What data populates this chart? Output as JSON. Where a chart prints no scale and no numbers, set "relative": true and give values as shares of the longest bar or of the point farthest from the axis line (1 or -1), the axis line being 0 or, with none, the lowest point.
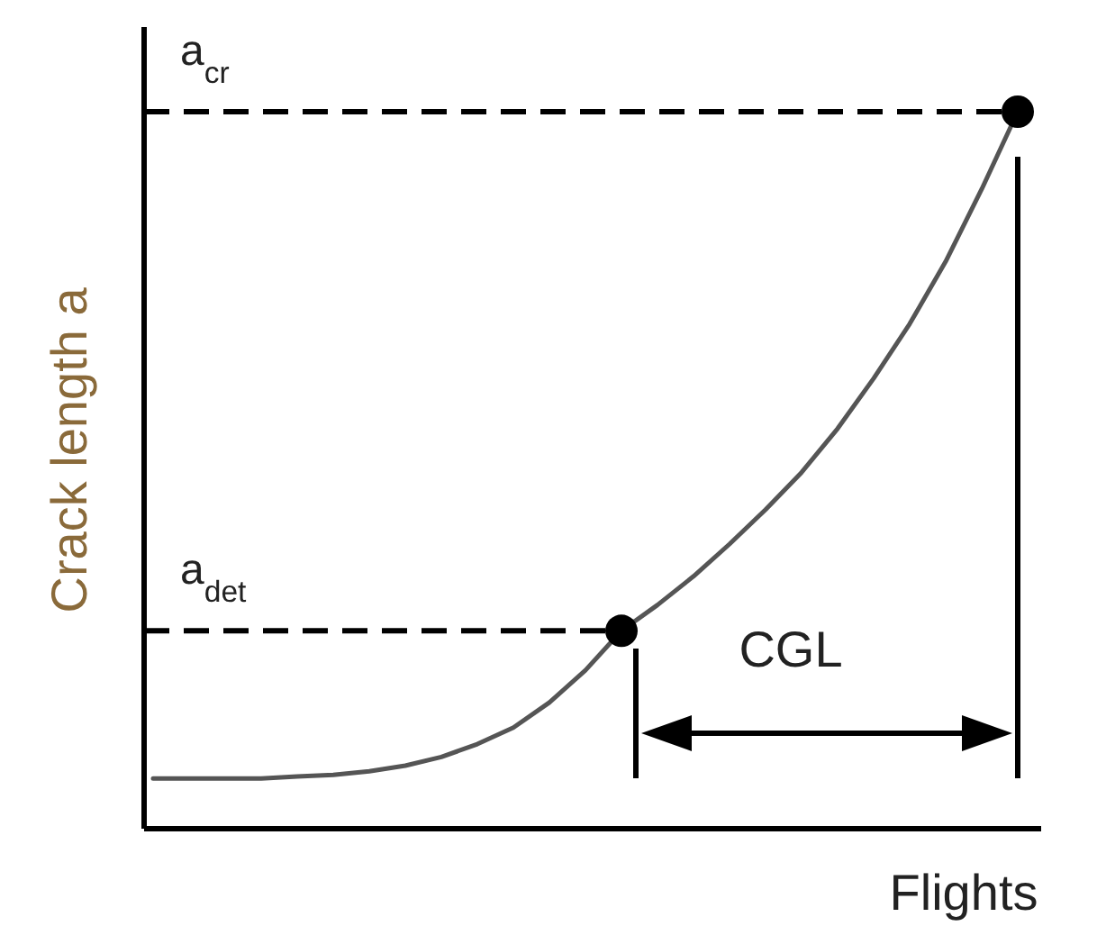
{
  "chart_data": {
    "type": "line",
    "relative": true,
    "xlabel": "Flights",
    "ylabel": "Crack length a",
    "categories": [
      null,
      null,
      null,
      null,
      null,
      null,
      null,
      null,
      null,
      null,
      null,
      null,
      null,
      null,
      null,
      null,
      null,
      null,
      null,
      null,
      null,
      null,
      null,
      null,
      null
    ],
    "series": [
      {
        "color": "#555555",
        "values": [
          0.07,
          0.07,
          0.07,
          0.07,
          0.073,
          0.075,
          0.08,
          0.088,
          0.1,
          0.118,
          0.141,
          0.176,
          0.221,
          0.276,
          0.312,
          0.352,
          0.397,
          0.445,
          0.497,
          0.558,
          0.628,
          0.704,
          0.791,
          0.892,
          1
        ]
      }
    ],
    "ref_lines": [
      {
        "axis": "y",
        "value": 1,
        "label": "a$_{cr}$",
        "color": "#000000",
        "line_style": "dashed"
      },
      {
        "axis": "y",
        "value": 0.276,
        "label": "a$_{det}$",
        "color": "#000000",
        "line_style": "dashed"
      }
    ],
    "annotations": [
      "CGL"
    ],
    "marker": "none",
    "grid": false,
    "legend": false
  }
}
